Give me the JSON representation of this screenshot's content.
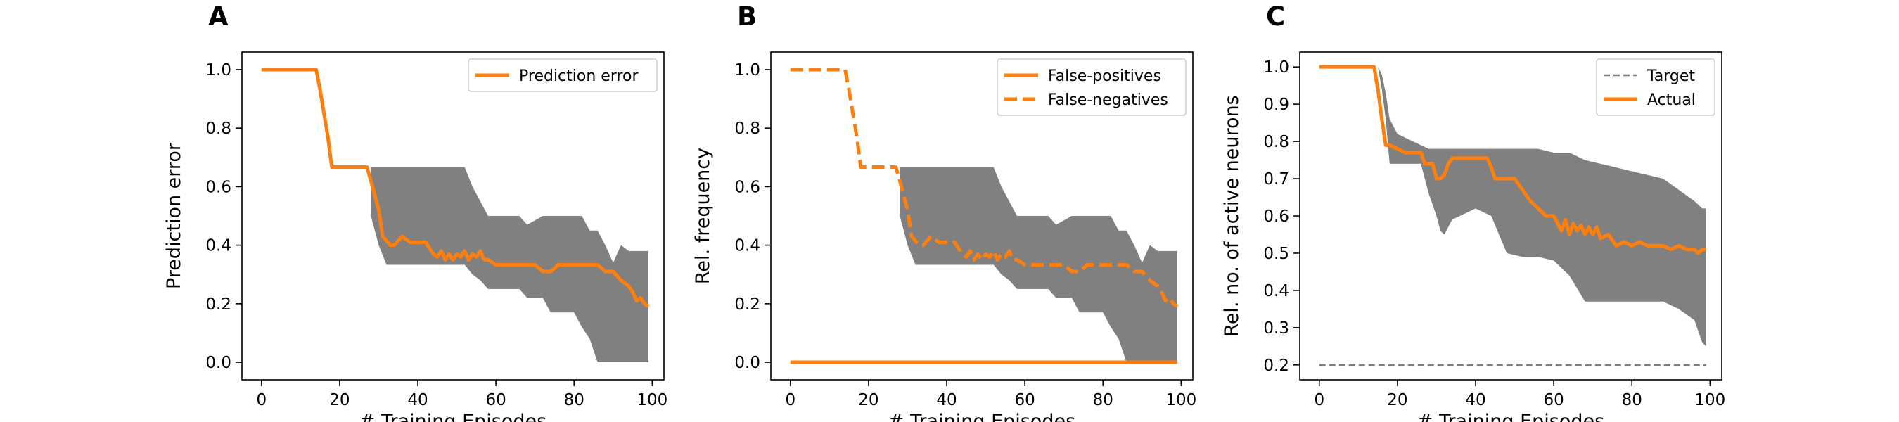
{
  "colors": {
    "accent": "#ff7f0e",
    "band": "#808080",
    "target": "#7f7f7f"
  },
  "chart_data": [
    {
      "panel": "A",
      "type": "line",
      "xlabel": "# Training Episodes",
      "ylabel": "Prediction error",
      "xlim": [
        -5,
        103
      ],
      "ylim": [
        -0.06,
        1.06
      ],
      "xticks": [
        0,
        20,
        40,
        60,
        80,
        100
      ],
      "yticks": [
        0.0,
        0.2,
        0.4,
        0.6,
        0.8,
        1.0
      ],
      "legend_position": "top-right",
      "series": [
        {
          "name": "Prediction error",
          "style": "solid",
          "x": [
            0,
            14,
            15,
            17,
            18,
            27,
            28,
            30,
            31,
            33,
            34,
            36,
            38,
            40,
            42,
            43,
            44,
            45,
            46,
            47,
            48,
            49,
            50,
            51,
            52,
            53,
            54,
            55,
            56,
            57,
            58,
            60,
            62,
            64,
            66,
            68,
            70,
            72,
            74,
            76,
            78,
            80,
            82,
            84,
            86,
            88,
            90,
            92,
            93,
            94,
            95,
            96,
            97,
            98,
            99
          ],
          "y": [
            1.0,
            1.0,
            0.93,
            0.77,
            0.667,
            0.667,
            0.62,
            0.52,
            0.43,
            0.4,
            0.4,
            0.43,
            0.41,
            0.41,
            0.41,
            0.39,
            0.37,
            0.36,
            0.38,
            0.35,
            0.37,
            0.35,
            0.37,
            0.36,
            0.38,
            0.35,
            0.37,
            0.36,
            0.38,
            0.35,
            0.35,
            0.333,
            0.333,
            0.333,
            0.333,
            0.333,
            0.333,
            0.31,
            0.31,
            0.333,
            0.333,
            0.333,
            0.333,
            0.333,
            0.333,
            0.31,
            0.31,
            0.28,
            0.27,
            0.26,
            0.24,
            0.21,
            0.22,
            0.2,
            0.19
          ]
        }
      ],
      "band": {
        "x": [
          28,
          30,
          32,
          34,
          36,
          40,
          48,
          52,
          54,
          56,
          58,
          60,
          62,
          66,
          68,
          72,
          74,
          76,
          80,
          82,
          84,
          86,
          88,
          90,
          92,
          94,
          96,
          98,
          99
        ],
        "upper": [
          0.667,
          0.667,
          0.667,
          0.667,
          0.667,
          0.667,
          0.667,
          0.667,
          0.6,
          0.55,
          0.5,
          0.5,
          0.5,
          0.5,
          0.47,
          0.5,
          0.5,
          0.5,
          0.5,
          0.5,
          0.45,
          0.45,
          0.4,
          0.34,
          0.4,
          0.38,
          0.38,
          0.38,
          0.38
        ],
        "lower": [
          0.5,
          0.4,
          0.333,
          0.333,
          0.333,
          0.333,
          0.333,
          0.333,
          0.3,
          0.28,
          0.25,
          0.25,
          0.25,
          0.25,
          0.22,
          0.22,
          0.17,
          0.17,
          0.17,
          0.12,
          0.08,
          0.0,
          0.0,
          0.0,
          0.0,
          0.0,
          0.0,
          0.0,
          0.0
        ]
      }
    },
    {
      "panel": "B",
      "type": "line",
      "xlabel": "# Training Episodes",
      "ylabel": "Rel. frequency",
      "xlim": [
        -5,
        103
      ],
      "ylim": [
        -0.06,
        1.06
      ],
      "xticks": [
        0,
        20,
        40,
        60,
        80,
        100
      ],
      "yticks": [
        0.0,
        0.2,
        0.4,
        0.6,
        0.8,
        1.0
      ],
      "legend_position": "top-right",
      "series": [
        {
          "name": "False-positives",
          "style": "solid",
          "x": [
            0,
            99
          ],
          "y": [
            0.0,
            0.0
          ]
        },
        {
          "name": "False-negatives",
          "style": "dashed",
          "x": [
            0,
            14,
            15,
            17,
            18,
            27,
            28,
            30,
            31,
            33,
            34,
            36,
            38,
            40,
            42,
            43,
            44,
            45,
            46,
            47,
            48,
            49,
            50,
            51,
            52,
            53,
            54,
            55,
            56,
            57,
            58,
            60,
            62,
            64,
            66,
            68,
            70,
            72,
            74,
            76,
            78,
            80,
            82,
            84,
            86,
            88,
            90,
            92,
            93,
            94,
            95,
            96,
            97,
            98,
            99
          ],
          "y": [
            1.0,
            1.0,
            0.93,
            0.77,
            0.667,
            0.667,
            0.62,
            0.52,
            0.43,
            0.4,
            0.4,
            0.43,
            0.41,
            0.41,
            0.41,
            0.39,
            0.37,
            0.36,
            0.38,
            0.35,
            0.37,
            0.35,
            0.37,
            0.36,
            0.38,
            0.35,
            0.37,
            0.36,
            0.38,
            0.35,
            0.35,
            0.333,
            0.333,
            0.333,
            0.333,
            0.333,
            0.333,
            0.31,
            0.31,
            0.333,
            0.333,
            0.333,
            0.333,
            0.333,
            0.333,
            0.31,
            0.31,
            0.28,
            0.27,
            0.26,
            0.24,
            0.21,
            0.22,
            0.2,
            0.19
          ]
        }
      ],
      "band": {
        "x": [
          28,
          30,
          32,
          34,
          36,
          40,
          48,
          52,
          54,
          56,
          58,
          60,
          62,
          66,
          68,
          72,
          74,
          76,
          80,
          82,
          84,
          86,
          88,
          90,
          92,
          94,
          96,
          98,
          99
        ],
        "upper": [
          0.667,
          0.667,
          0.667,
          0.667,
          0.667,
          0.667,
          0.667,
          0.667,
          0.6,
          0.55,
          0.5,
          0.5,
          0.5,
          0.5,
          0.47,
          0.5,
          0.5,
          0.5,
          0.5,
          0.5,
          0.45,
          0.45,
          0.4,
          0.34,
          0.4,
          0.38,
          0.38,
          0.38,
          0.38
        ],
        "lower": [
          0.5,
          0.4,
          0.333,
          0.333,
          0.333,
          0.333,
          0.333,
          0.333,
          0.3,
          0.28,
          0.25,
          0.25,
          0.25,
          0.25,
          0.22,
          0.22,
          0.17,
          0.17,
          0.17,
          0.12,
          0.08,
          0.0,
          0.0,
          0.0,
          0.0,
          0.0,
          0.0,
          0.0,
          0.0
        ]
      }
    },
    {
      "panel": "C",
      "type": "line",
      "xlabel": "# Training Episodes",
      "ylabel": "Rel. no. of active neurons",
      "xlim": [
        -5,
        103
      ],
      "ylim": [
        0.16,
        1.04
      ],
      "xticks": [
        0,
        20,
        40,
        60,
        80,
        100
      ],
      "yticks": [
        0.2,
        0.3,
        0.4,
        0.5,
        0.6,
        0.7,
        0.8,
        0.9,
        1.0
      ],
      "legend_position": "top-right",
      "series": [
        {
          "name": "Target",
          "style": "dashed-thin",
          "x": [
            0,
            99
          ],
          "y": [
            0.2,
            0.2
          ]
        },
        {
          "name": "Actual",
          "style": "solid",
          "x": [
            0,
            14,
            15,
            16,
            17,
            18,
            20,
            22,
            24,
            26,
            27,
            28,
            29,
            30,
            31,
            32,
            33,
            34,
            35,
            36,
            38,
            40,
            42,
            43,
            44,
            45,
            46,
            48,
            50,
            52,
            54,
            56,
            58,
            60,
            61,
            62,
            63,
            64,
            65,
            66,
            67,
            68,
            69,
            70,
            71,
            72,
            74,
            76,
            78,
            80,
            82,
            84,
            86,
            88,
            90,
            92,
            94,
            96,
            97,
            98,
            99
          ],
          "y": [
            1.0,
            1.0,
            0.94,
            0.86,
            0.79,
            0.79,
            0.78,
            0.77,
            0.77,
            0.77,
            0.74,
            0.74,
            0.74,
            0.7,
            0.7,
            0.71,
            0.74,
            0.755,
            0.755,
            0.755,
            0.755,
            0.755,
            0.755,
            0.755,
            0.73,
            0.7,
            0.7,
            0.7,
            0.7,
            0.67,
            0.64,
            0.62,
            0.6,
            0.6,
            0.58,
            0.56,
            0.59,
            0.55,
            0.58,
            0.56,
            0.575,
            0.55,
            0.57,
            0.55,
            0.57,
            0.54,
            0.55,
            0.52,
            0.53,
            0.52,
            0.53,
            0.52,
            0.52,
            0.52,
            0.51,
            0.52,
            0.51,
            0.51,
            0.5,
            0.51,
            0.51
          ]
        }
      ],
      "band": {
        "x": [
          15,
          16,
          17,
          18,
          20,
          24,
          26,
          28,
          30,
          31,
          32,
          34,
          36,
          40,
          44,
          48,
          52,
          56,
          60,
          64,
          68,
          72,
          76,
          80,
          84,
          88,
          92,
          96,
          98,
          99
        ],
        "upper": [
          1.0,
          0.98,
          0.93,
          0.86,
          0.82,
          0.8,
          0.79,
          0.78,
          0.78,
          0.78,
          0.78,
          0.78,
          0.78,
          0.78,
          0.78,
          0.78,
          0.78,
          0.78,
          0.77,
          0.77,
          0.75,
          0.74,
          0.73,
          0.72,
          0.71,
          0.7,
          0.67,
          0.64,
          0.62,
          0.62
        ],
        "lower": [
          1.0,
          0.94,
          0.86,
          0.74,
          0.74,
          0.74,
          0.74,
          0.66,
          0.6,
          0.56,
          0.55,
          0.59,
          0.6,
          0.62,
          0.6,
          0.5,
          0.49,
          0.49,
          0.48,
          0.44,
          0.37,
          0.37,
          0.37,
          0.37,
          0.37,
          0.37,
          0.35,
          0.32,
          0.26,
          0.25
        ]
      }
    }
  ]
}
